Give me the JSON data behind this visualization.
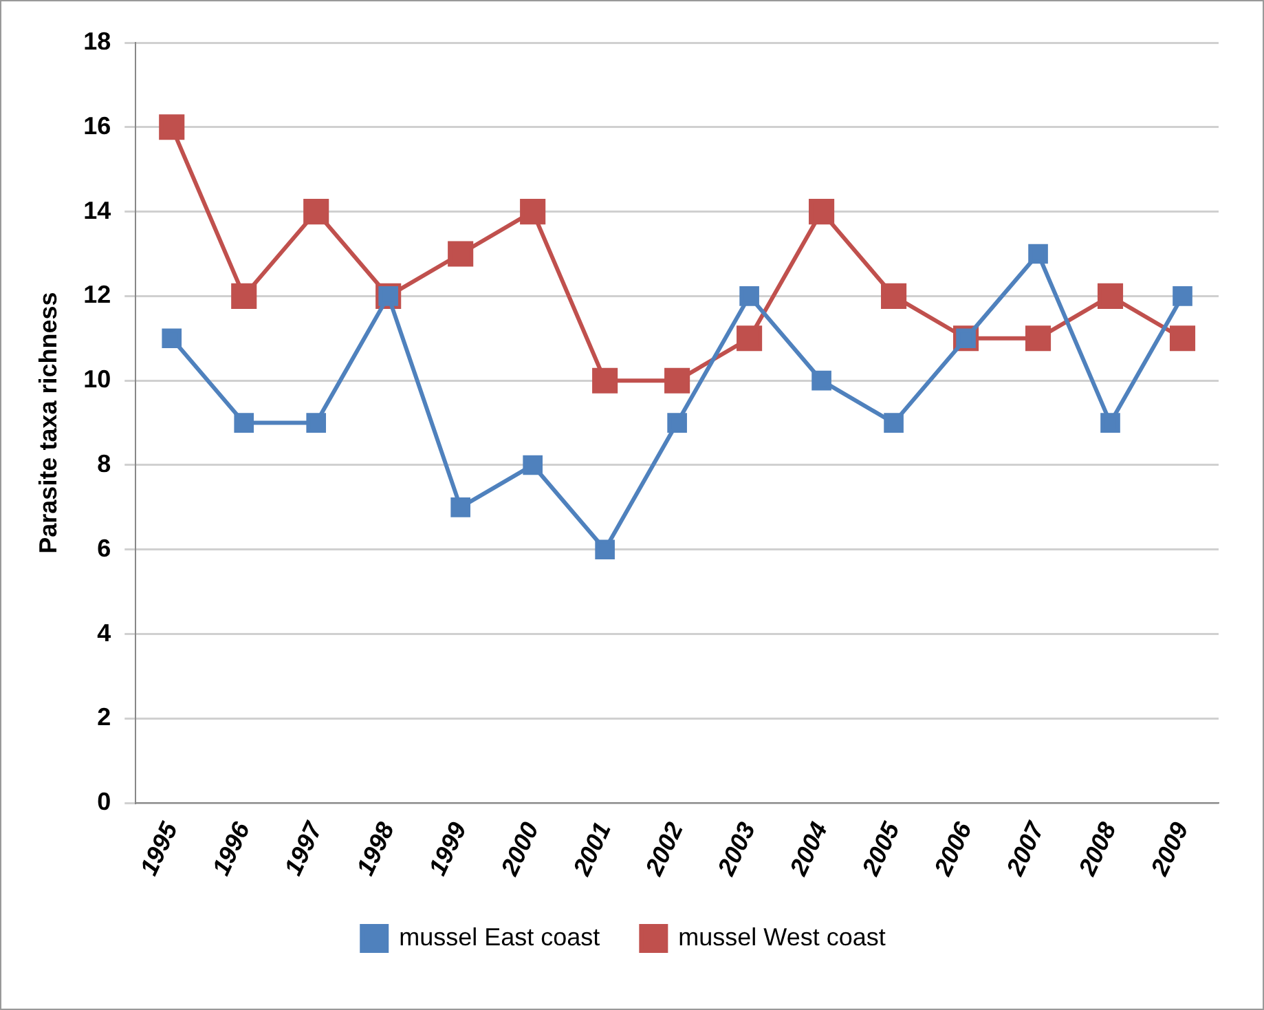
{
  "chart_data": {
    "type": "line",
    "ylabel": "Parasite taxa richness",
    "categories": [
      "1995",
      "1996",
      "1997",
      "1998",
      "1999",
      "2000",
      "2001",
      "2002",
      "2003",
      "2004",
      "2005",
      "2006",
      "2007",
      "2008",
      "2009"
    ],
    "series": [
      {
        "name": "mussel East coast",
        "color": "#4f81bd",
        "values": [
          11,
          9,
          9,
          12,
          7,
          8,
          6,
          9,
          12,
          10,
          9,
          11,
          13,
          9,
          12
        ]
      },
      {
        "name": "mussel West coast",
        "color": "#c0504d",
        "values": [
          16,
          12,
          14,
          12,
          13,
          14,
          10,
          10,
          11,
          14,
          12,
          11,
          11,
          12,
          11
        ]
      }
    ],
    "ylim": [
      0,
      18
    ],
    "yticks": [
      0,
      2,
      4,
      6,
      8,
      10,
      12,
      14,
      16,
      18
    ],
    "grid": "y",
    "legend": "bottom",
    "marker": "square",
    "line_style": "solid"
  }
}
